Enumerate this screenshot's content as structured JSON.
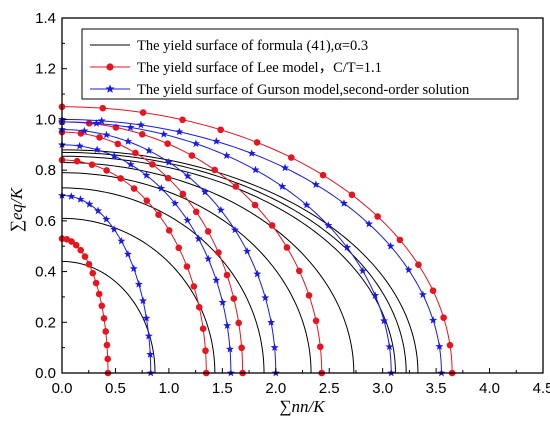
{
  "chart_data": {
    "type": "line",
    "title": "",
    "xlabel": "∑nn/K",
    "ylabel": "∑eq/K",
    "xlim": [
      0,
      4.5
    ],
    "ylim": [
      0,
      1.4
    ],
    "x_ticks": [
      "0.0",
      "0.5",
      "1.0",
      "1.5",
      "2.0",
      "2.5",
      "3.0",
      "3.5",
      "4.0",
      "4.5"
    ],
    "y_ticks": [
      "0.0",
      "0.2",
      "0.4",
      "0.6",
      "0.8",
      "1.0",
      "1.2",
      "1.4"
    ],
    "grid": false,
    "legend_position": "top",
    "legend": [
      {
        "text": "The yield surface of formula (41),α=0.3",
        "color": "#000000",
        "marker": "none"
      },
      {
        "text": "The yield surface of Lee model，C/T=1.1",
        "color": "#e8141e",
        "marker": "circle"
      },
      {
        "text": "The yield surface of Gurson model,second-order solution",
        "color": "#1a1ae6",
        "marker": "star"
      }
    ],
    "series": [
      {
        "group": "formula-41",
        "color": "#000000",
        "marker": "none",
        "y0": 0.44,
        "xmax": 0.87
      },
      {
        "group": "formula-41",
        "color": "#000000",
        "marker": "none",
        "y0": 0.61,
        "xmax": 1.43
      },
      {
        "group": "formula-41",
        "color": "#000000",
        "marker": "none",
        "y0": 0.73,
        "xmax": 1.89
      },
      {
        "group": "formula-41",
        "color": "#000000",
        "marker": "none",
        "y0": 0.79,
        "xmax": 2.33
      },
      {
        "group": "formula-41",
        "color": "#000000",
        "marker": "none",
        "y0": 0.83,
        "xmax": 2.73
      },
      {
        "group": "formula-41",
        "color": "#000000",
        "marker": "none",
        "y0": 0.855,
        "xmax": 3.12
      },
      {
        "group": "formula-41",
        "color": "#000000",
        "marker": "none",
        "y0": 0.87,
        "xmax": 3.22
      },
      {
        "group": "formula-41",
        "color": "#000000",
        "marker": "none",
        "y0": 0.88,
        "xmax": 3.33
      },
      {
        "group": "lee",
        "color": "#e8141e",
        "marker": "circle",
        "y0": 0.53,
        "xmax": 0.43
      },
      {
        "group": "lee",
        "color": "#e8141e",
        "marker": "circle",
        "y0": 0.84,
        "xmax": 1.35
      },
      {
        "group": "lee",
        "color": "#e8141e",
        "marker": "circle",
        "y0": 0.95,
        "xmax": 1.69
      },
      {
        "group": "lee",
        "color": "#e8141e",
        "marker": "circle",
        "y0": 0.99,
        "xmax": 2.43
      },
      {
        "group": "lee",
        "color": "#e8141e",
        "marker": "circle",
        "y0": 1.05,
        "xmax": 3.65
      },
      {
        "group": "gurson",
        "color": "#1a1ae6",
        "marker": "star",
        "y0": 0.7,
        "xmax": 0.83
      },
      {
        "group": "gurson",
        "color": "#1a1ae6",
        "marker": "star",
        "y0": 0.9,
        "xmax": 1.58
      },
      {
        "group": "gurson",
        "color": "#1a1ae6",
        "marker": "star",
        "y0": 0.96,
        "xmax": 2.0
      },
      {
        "group": "gurson",
        "color": "#1a1ae6",
        "marker": "star",
        "y0": 0.99,
        "xmax": 3.08
      },
      {
        "group": "gurson",
        "color": "#1a1ae6",
        "marker": "star",
        "y0": 1.0,
        "xmax": 3.55
      }
    ]
  }
}
